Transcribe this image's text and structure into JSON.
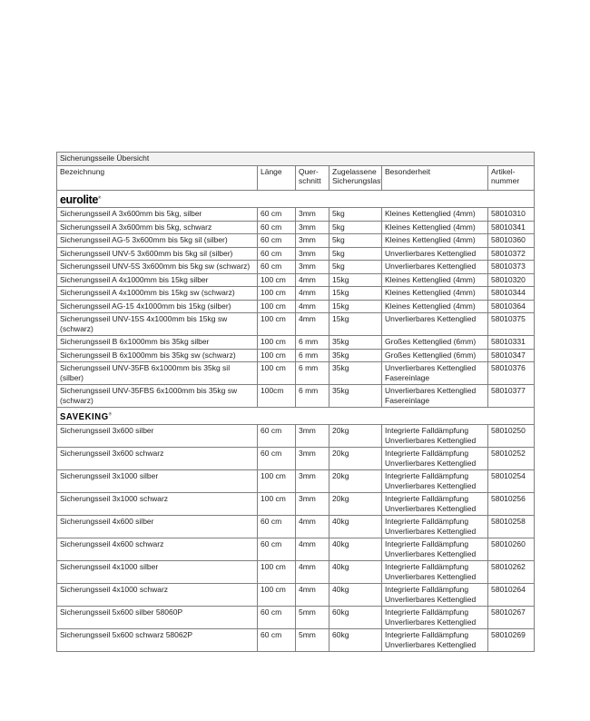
{
  "colors": {
    "page_background": "#ffffff",
    "table_border": "#7f7f7f",
    "title_row_background": "#f2f2f2",
    "text": "#1f1f1f",
    "logo_text": "#000000"
  },
  "table": {
    "title": "Sicherungsseile Übersicht",
    "columns": [
      "Bezeichnung",
      "Länge",
      "Quer-\nschnitt",
      "Zugelassene\nSicherungslast",
      "Besonderheit",
      "Artikel-\nnummer"
    ],
    "reg_mark": "®",
    "sections": [
      {
        "brand_id": "eurolite",
        "brand": "eurolite",
        "rows": [
          {
            "cells": [
              "Sicherungsseil A 3x600mm bis 5kg, silber",
              "60 cm",
              "3mm",
              "5kg",
              "Kleines Kettenglied (4mm)",
              "58010310"
            ]
          },
          {
            "cells": [
              "Sicherungsseil A 3x600mm bis 5kg, schwarz",
              "60 cm",
              "3mm",
              "5kg",
              "Kleines Kettenglied (4mm)",
              "58010341"
            ]
          },
          {
            "cells": [
              "Sicherungsseil AG-5 3x600mm bis 5kg sil (silber)",
              "60 cm",
              "3mm",
              "5kg",
              "Kleines Kettenglied (4mm)",
              "58010360"
            ]
          },
          {
            "cells": [
              "Sicherungsseil UNV-5 3x600mm bis 5kg sil (silber)",
              "60 cm",
              "3mm",
              "5kg",
              "Unverlierbares Kettenglied",
              "58010372"
            ]
          },
          {
            "cells": [
              "Sicherungsseil UNV-5S 3x600mm bis 5kg sw (schwarz)",
              "60 cm",
              "3mm",
              "5kg",
              "Unverlierbares Kettenglied",
              "58010373"
            ]
          },
          {
            "cells": [
              "Sicherungsseil A 4x1000mm bis 15kg silber",
              "100 cm",
              "4mm",
              "15kg",
              "Kleines Kettenglied (4mm)",
              "58010320"
            ]
          },
          {
            "cells": [
              "Sicherungsseil A 4x1000mm bis 15kg sw (schwarz)",
              "100 cm",
              "4mm",
              "15kg",
              "Kleines Kettenglied (4mm)",
              "58010344"
            ]
          },
          {
            "cells": [
              "Sicherungsseil AG-15 4x1000mm bis 15kg (silber)",
              "100 cm",
              "4mm",
              "15kg",
              "Kleines Kettenglied (4mm)",
              "58010364"
            ]
          },
          {
            "cells": [
              "Sicherungsseil UNV-15S 4x1000mm bis 15kg sw (schwarz)",
              "100 cm",
              "4mm",
              "15kg",
              "Unverlierbares Kettenglied",
              "58010375"
            ]
          },
          {
            "cells": [
              "Sicherungsseil B 6x1000mm bis 35kg silber",
              "100 cm",
              "6 mm",
              "35kg",
              "Großes Kettenglied (6mm)",
              "58010331"
            ]
          },
          {
            "cells": [
              "Sicherungsseil B 6x1000mm bis 35kg sw (schwarz)",
              "100 cm",
              "6 mm",
              "35kg",
              "Großes Kettenglied (6mm)",
              "58010347"
            ]
          },
          {
            "cells": [
              "Sicherungsseil UNV-35FB 6x1000mm bis 35kg sil (silber)",
              "100 cm",
              "6 mm",
              "35kg",
              "Unverlierbares Kettenglied\nFasereinlage",
              "58010376"
            ],
            "double": true
          },
          {
            "cells": [
              "Sicherungsseil UNV-35FBS 6x1000mm bis 35kg sw (schwarz)",
              "100cm",
              "6 mm",
              "35kg",
              "Unverlierbares Kettenglied\nFasereinlage",
              "58010377"
            ],
            "double": true
          }
        ]
      },
      {
        "brand_id": "saveking",
        "brand": "SAVEKING",
        "rows": [
          {
            "cells": [
              "Sicherungsseil 3x600 silber",
              "60 cm",
              "3mm",
              "20kg",
              "Integrierte Falldämpfung\nUnverlierbares Kettenglied",
              "58010250"
            ],
            "double": true
          },
          {
            "cells": [
              "Sicherungsseil 3x600 schwarz",
              "60 cm",
              "3mm",
              "20kg",
              "Integrierte Falldämpfung\nUnverlierbares Kettenglied",
              "58010252"
            ],
            "double": true
          },
          {
            "cells": [
              "Sicherungsseil 3x1000 silber",
              "100 cm",
              "3mm",
              "20kg",
              "Integrierte Falldämpfung\nUnverlierbares Kettenglied",
              "58010254"
            ],
            "double": true
          },
          {
            "cells": [
              "Sicherungsseil 3x1000 schwarz",
              "100 cm",
              "3mm",
              "20kg",
              "Integrierte Falldämpfung\nUnverlierbares Kettenglied",
              "58010256"
            ],
            "double": true
          },
          {
            "cells": [
              "Sicherungsseil 4x600 silber",
              "60 cm",
              "4mm",
              "40kg",
              "Integrierte Falldämpfung\nUnverlierbares Kettenglied",
              "58010258"
            ],
            "double": true
          },
          {
            "cells": [
              "Sicherungsseil 4x600 schwarz",
              "60 cm",
              "4mm",
              "40kg",
              "Integrierte Falldämpfung\nUnverlierbares Kettenglied",
              "58010260"
            ],
            "double": true
          },
          {
            "cells": [
              "Sicherungsseil 4x1000 silber",
              "100 cm",
              "4mm",
              "40kg",
              "Integrierte Falldämpfung\nUnverlierbares Kettenglied",
              "58010262"
            ],
            "double": true
          },
          {
            "cells": [
              "Sicherungsseil 4x1000 schwarz",
              "100 cm",
              "4mm",
              "40kg",
              "Integrierte Falldämpfung\nUnverlierbares Kettenglied",
              "58010264"
            ],
            "double": true
          },
          {
            "cells": [
              "Sicherungsseil 5x600 silber 58060P",
              "60 cm",
              "5mm",
              "60kg",
              "Integrierte Falldämpfung\nUnverlierbares Kettenglied",
              "58010267"
            ],
            "double": true
          },
          {
            "cells": [
              "Sicherungsseil 5x600 schwarz 58062P",
              "60 cm",
              "5mm",
              "60kg",
              "Integrierte Falldämpfung\nUnverlierbares Kettenglied",
              "58010269"
            ],
            "double": true
          }
        ]
      }
    ],
    "column_names_semantic": [
      "bezeichnung",
      "laenge",
      "querschnitt",
      "sicherungslast",
      "besonderheit",
      "artikelnummer"
    ]
  }
}
